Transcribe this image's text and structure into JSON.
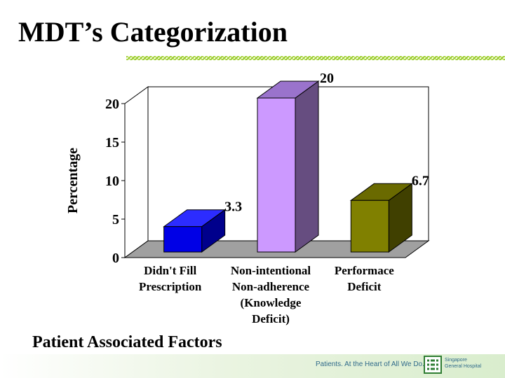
{
  "slide": {
    "title": "MDT’s Categorization",
    "caption": "Patient Associated Factors",
    "tagline": "Patients. At the Heart of All We Do.",
    "hospital_line1": "Singapore",
    "hospital_line2": "General Hospital",
    "accent_color": "#9acd32"
  },
  "chart_data": {
    "type": "bar",
    "title": "",
    "ylabel": "Percentage",
    "xlabel": "",
    "ylim": [
      0,
      20
    ],
    "yticks": [
      0,
      5,
      10,
      15,
      20
    ],
    "categories": [
      [
        "Didn't Fill",
        "Prescription"
      ],
      [
        "Non-intentional",
        "Non-adherence",
        "(Knowledge",
        "Deficit)"
      ],
      [
        "Performace",
        "Deficit"
      ]
    ],
    "values": [
      3.3,
      20,
      6.7
    ],
    "value_labels": [
      "3.3",
      "20",
      "6.7"
    ],
    "colors": [
      {
        "front": "#0000e6",
        "side": "#00008c",
        "top": "#2c2cff"
      },
      {
        "front": "#cc99ff",
        "side": "#664d80",
        "top": "#9a73cc"
      },
      {
        "front": "#808000",
        "side": "#404000",
        "top": "#6a6a00"
      }
    ],
    "grid": false
  }
}
